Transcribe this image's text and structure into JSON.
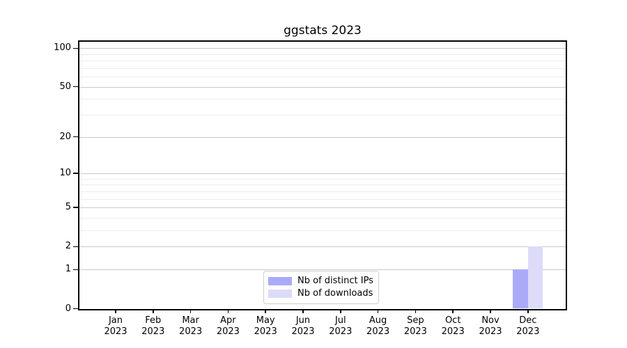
{
  "chart_data": {
    "type": "bar",
    "title": "ggstats 2023",
    "categories": [
      {
        "month": "Jan",
        "year": "2023"
      },
      {
        "month": "Feb",
        "year": "2023"
      },
      {
        "month": "Mar",
        "year": "2023"
      },
      {
        "month": "Apr",
        "year": "2023"
      },
      {
        "month": "May",
        "year": "2023"
      },
      {
        "month": "Jun",
        "year": "2023"
      },
      {
        "month": "Jul",
        "year": "2023"
      },
      {
        "month": "Aug",
        "year": "2023"
      },
      {
        "month": "Sep",
        "year": "2023"
      },
      {
        "month": "Oct",
        "year": "2023"
      },
      {
        "month": "Nov",
        "year": "2023"
      },
      {
        "month": "Dec",
        "year": "2023"
      }
    ],
    "series": [
      {
        "name": "Nb of distinct IPs",
        "color": "#abaaf8",
        "values": [
          0,
          0,
          0,
          0,
          0,
          0,
          0,
          0,
          0,
          0,
          0,
          1
        ]
      },
      {
        "name": "Nb of downloads",
        "color": "#dcdcf8",
        "values": [
          0,
          0,
          0,
          0,
          0,
          0,
          0,
          0,
          0,
          0,
          0,
          2
        ]
      }
    ],
    "y_axis": {
      "scale": "log1p",
      "major_ticks": [
        0,
        1,
        2,
        5,
        10,
        20,
        50,
        100
      ],
      "major_tick_labels": [
        "0",
        "1",
        "2",
        "5",
        "10",
        "20",
        "50",
        "100"
      ],
      "minor_gridlines": [
        3,
        4,
        6,
        7,
        8,
        9,
        30,
        40,
        60,
        70,
        80,
        90
      ],
      "ylim": [
        0,
        113
      ]
    },
    "grid": {
      "major_on": true,
      "minor_on": true
    },
    "legend": {
      "position": "lower center"
    },
    "colors": {
      "spine": "#000000",
      "major_grid": "#c9c9c9",
      "minor_grid": "#ececec",
      "text": "#000000",
      "legend_border": "#cccccc",
      "background": "#ffffff"
    }
  }
}
